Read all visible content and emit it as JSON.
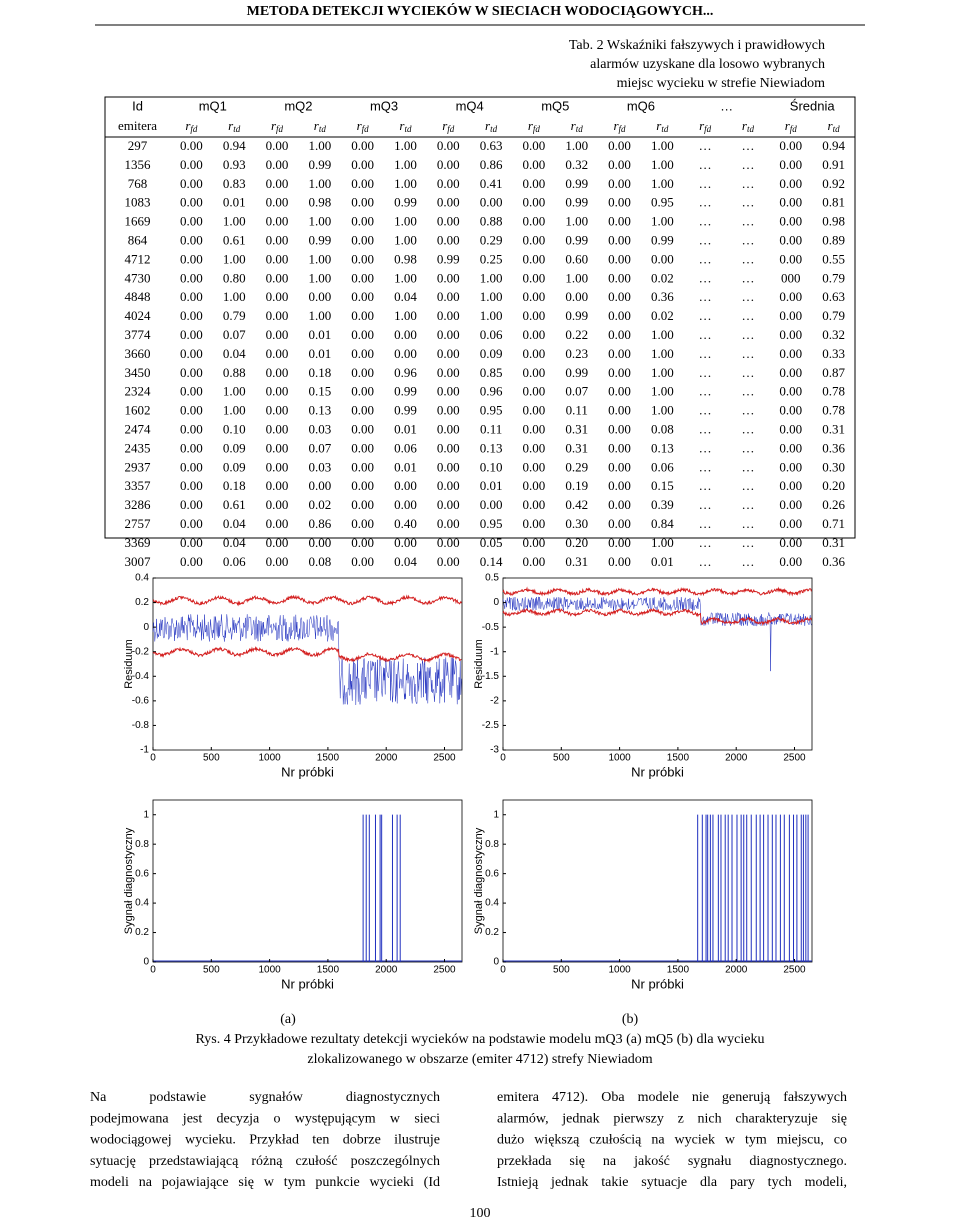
{
  "header": {
    "title": "METODA DETEKCJI WYCIEKÓW W SIECIACH WODOCIĄGOWYCH..."
  },
  "table": {
    "caption": [
      "Tab. 2 Wskaźniki fałszywych i prawidłowych",
      "alarmów uzyskane dla losowo wybranych",
      "miejsc wycieku w strefie Niewiadom"
    ],
    "group_headers": [
      "Id",
      "mQ1",
      "mQ2",
      "mQ3",
      "mQ4",
      "mQ5",
      "mQ6",
      "…",
      "Średnia"
    ],
    "row_header": "emitera",
    "sub_headers": [
      {
        "base": "r",
        "sub": "fd"
      },
      {
        "base": "r",
        "sub": "td"
      },
      {
        "base": "r",
        "sub": "fd"
      },
      {
        "base": "r",
        "sub": "td"
      },
      {
        "base": "r",
        "sub": "fd"
      },
      {
        "base": "r",
        "sub": "td"
      },
      {
        "base": "r",
        "sub": "fd"
      },
      {
        "base": "r",
        "sub": "td"
      },
      {
        "base": "r",
        "sub": "fd"
      },
      {
        "base": "r",
        "sub": "td"
      },
      {
        "base": "r",
        "sub": "fd"
      },
      {
        "base": "r",
        "sub": "td"
      },
      {
        "base": "r",
        "sub": "fd"
      },
      {
        "base": "r",
        "sub": "td"
      },
      {
        "base": "r",
        "sub": "fd"
      },
      {
        "base": "r",
        "sub": "td"
      }
    ],
    "rows": [
      [
        "297",
        "0.00",
        "0.94",
        "0.00",
        "1.00",
        "0.00",
        "1.00",
        "0.00",
        "0.63",
        "0.00",
        "1.00",
        "0.00",
        "1.00",
        "…",
        "…",
        "0.00",
        "0.94"
      ],
      [
        "1356",
        "0.00",
        "0.93",
        "0.00",
        "0.99",
        "0.00",
        "1.00",
        "0.00",
        "0.86",
        "0.00",
        "0.32",
        "0.00",
        "1.00",
        "…",
        "…",
        "0.00",
        "0.91"
      ],
      [
        "768",
        "0.00",
        "0.83",
        "0.00",
        "1.00",
        "0.00",
        "1.00",
        "0.00",
        "0.41",
        "0.00",
        "0.99",
        "0.00",
        "1.00",
        "…",
        "…",
        "0.00",
        "0.92"
      ],
      [
        "1083",
        "0.00",
        "0.01",
        "0.00",
        "0.98",
        "0.00",
        "0.99",
        "0.00",
        "0.00",
        "0.00",
        "0.99",
        "0.00",
        "0.95",
        "…",
        "…",
        "0.00",
        "0.81"
      ],
      [
        "1669",
        "0.00",
        "1.00",
        "0.00",
        "1.00",
        "0.00",
        "1.00",
        "0.00",
        "0.88",
        "0.00",
        "1.00",
        "0.00",
        "1.00",
        "…",
        "…",
        "0.00",
        "0.98"
      ],
      [
        "864",
        "0.00",
        "0.61",
        "0.00",
        "0.99",
        "0.00",
        "1.00",
        "0.00",
        "0.29",
        "0.00",
        "0.99",
        "0.00",
        "0.99",
        "…",
        "…",
        "0.00",
        "0.89"
      ],
      [
        "4712",
        "0.00",
        "1.00",
        "0.00",
        "1.00",
        "0.00",
        "0.98",
        "0.99",
        "0.25",
        "0.00",
        "0.60",
        "0.00",
        "0.00",
        "…",
        "…",
        "0.00",
        "0.55"
      ],
      [
        "4730",
        "0.00",
        "0.80",
        "0.00",
        "1.00",
        "0.00",
        "1.00",
        "0.00",
        "1.00",
        "0.00",
        "1.00",
        "0.00",
        "0.02",
        "…",
        "…",
        "000",
        "0.79"
      ],
      [
        "4848",
        "0.00",
        "1.00",
        "0.00",
        "0.00",
        "0.00",
        "0.04",
        "0.00",
        "1.00",
        "0.00",
        "0.00",
        "0.00",
        "0.36",
        "…",
        "…",
        "0.00",
        "0.63"
      ],
      [
        "4024",
        "0.00",
        "0.79",
        "0.00",
        "1.00",
        "0.00",
        "1.00",
        "0.00",
        "1.00",
        "0.00",
        "0.99",
        "0.00",
        "0.02",
        "…",
        "…",
        "0.00",
        "0.79"
      ],
      [
        "3774",
        "0.00",
        "0.07",
        "0.00",
        "0.01",
        "0.00",
        "0.00",
        "0.00",
        "0.06",
        "0.00",
        "0.22",
        "0.00",
        "1.00",
        "…",
        "…",
        "0.00",
        "0.32"
      ],
      [
        "3660",
        "0.00",
        "0.04",
        "0.00",
        "0.01",
        "0.00",
        "0.00",
        "0.00",
        "0.09",
        "0.00",
        "0.23",
        "0.00",
        "1.00",
        "…",
        "…",
        "0.00",
        "0.33"
      ],
      [
        "3450",
        "0.00",
        "0.88",
        "0.00",
        "0.18",
        "0.00",
        "0.96",
        "0.00",
        "0.85",
        "0.00",
        "0.99",
        "0.00",
        "1.00",
        "…",
        "…",
        "0.00",
        "0.87"
      ],
      [
        "2324",
        "0.00",
        "1.00",
        "0.00",
        "0.15",
        "0.00",
        "0.99",
        "0.00",
        "0.96",
        "0.00",
        "0.07",
        "0.00",
        "1.00",
        "…",
        "…",
        "0.00",
        "0.78"
      ],
      [
        "1602",
        "0.00",
        "1.00",
        "0.00",
        "0.13",
        "0.00",
        "0.99",
        "0.00",
        "0.95",
        "0.00",
        "0.11",
        "0.00",
        "1.00",
        "…",
        "…",
        "0.00",
        "0.78"
      ],
      [
        "2474",
        "0.00",
        "0.10",
        "0.00",
        "0.03",
        "0.00",
        "0.01",
        "0.00",
        "0.11",
        "0.00",
        "0.31",
        "0.00",
        "0.08",
        "…",
        "…",
        "0.00",
        "0.31"
      ],
      [
        "2435",
        "0.00",
        "0.09",
        "0.00",
        "0.07",
        "0.00",
        "0.06",
        "0.00",
        "0.13",
        "0.00",
        "0.31",
        "0.00",
        "0.13",
        "…",
        "…",
        "0.00",
        "0.36"
      ],
      [
        "2937",
        "0.00",
        "0.09",
        "0.00",
        "0.03",
        "0.00",
        "0.01",
        "0.00",
        "0.10",
        "0.00",
        "0.29",
        "0.00",
        "0.06",
        "…",
        "…",
        "0.00",
        "0.30"
      ],
      [
        "3357",
        "0.00",
        "0.18",
        "0.00",
        "0.00",
        "0.00",
        "0.00",
        "0.00",
        "0.01",
        "0.00",
        "0.19",
        "0.00",
        "0.15",
        "…",
        "…",
        "0.00",
        "0.20"
      ],
      [
        "3286",
        "0.00",
        "0.61",
        "0.00",
        "0.02",
        "0.00",
        "0.00",
        "0.00",
        "0.00",
        "0.00",
        "0.42",
        "0.00",
        "0.39",
        "…",
        "…",
        "0.00",
        "0.26"
      ],
      [
        "2757",
        "0.00",
        "0.04",
        "0.00",
        "0.86",
        "0.00",
        "0.40",
        "0.00",
        "0.95",
        "0.00",
        "0.30",
        "0.00",
        "0.84",
        "…",
        "…",
        "0.00",
        "0.71"
      ],
      [
        "3369",
        "0.00",
        "0.04",
        "0.00",
        "0.00",
        "0.00",
        "0.00",
        "0.00",
        "0.05",
        "0.00",
        "0.20",
        "0.00",
        "1.00",
        "…",
        "…",
        "0.00",
        "0.31"
      ],
      [
        "3007",
        "0.00",
        "0.06",
        "0.00",
        "0.08",
        "0.00",
        "0.04",
        "0.00",
        "0.14",
        "0.00",
        "0.31",
        "0.00",
        "0.01",
        "…",
        "…",
        "0.00",
        "0.36"
      ]
    ]
  },
  "figures": {
    "panels": [
      {
        "ylabel": "Residuum",
        "xlabel": "Nr próbki",
        "xlim": [
          0,
          2650
        ],
        "ylim": [
          -1,
          0.4
        ],
        "xticks": [
          0,
          500,
          1000,
          1500,
          2000,
          2500
        ],
        "yticks": [
          0.4,
          0.2,
          0,
          -0.2,
          -0.4,
          -0.6,
          -0.8,
          -1
        ]
      },
      {
        "ylabel": "Residuum",
        "xlabel": "Nr próbki",
        "xlim": [
          0,
          2650
        ],
        "ylim": [
          -3,
          0.5
        ],
        "xticks": [
          0,
          500,
          1000,
          1500,
          2000,
          2500
        ],
        "yticks": [
          0.5,
          0,
          -0.5,
          -1,
          -1.5,
          -2,
          -2.5,
          -3
        ]
      },
      {
        "ylabel": "Sygnał diagnostyczny",
        "xlabel": "Nr próbki",
        "xlim": [
          0,
          2650
        ],
        "ylim": [
          0,
          1.1
        ],
        "xticks": [
          0,
          500,
          1000,
          1500,
          2000,
          2500
        ],
        "yticks": [
          0,
          0.2,
          0.4,
          0.6,
          0.8,
          1
        ]
      },
      {
        "ylabel": "Sygnał diagnostyczny",
        "xlabel": "Nr próbki",
        "xlim": [
          0,
          2650
        ],
        "ylim": [
          0,
          1.1
        ],
        "xticks": [
          0,
          500,
          1000,
          1500,
          2000,
          2500
        ],
        "yticks": [
          0,
          0.2,
          0.4,
          0.6,
          0.8,
          1
        ]
      }
    ],
    "panel_labels": [
      "(a)",
      "(b)"
    ],
    "caption": [
      "Rys. 4 Przykładowe rezultaty detekcji wycieków na podstawie modelu mQ3 (a) mQ5 (b) dla wycieku",
      "zlokalizowanego w obszarze (emiter 4712) strefy Niewiadom"
    ]
  },
  "body": {
    "left": [
      "Na podstawie sygnałów diagnostycznych",
      "podejmowana jest decyzja o występującym w sieci",
      "wodociągowej wycieku. Przykład ten dobrze ilustruje",
      "sytuację przedstawiającą różną czułość poszczególnych",
      "modeli na pojawiające się w tym punkcie wycieki (Id"
    ],
    "right": [
      "emitera 4712). Oba modele nie generują fałszywych",
      "alarmów, jednak pierwszy z nich charakteryzuje się",
      "dużo większą czułością na wyciek w tym miejscu, co",
      "przekłada się na jakość sygnału diagnostycznego.",
      "Istnieją jednak takie sytuacje dla pary tych modeli,"
    ]
  },
  "page_number": "100"
}
